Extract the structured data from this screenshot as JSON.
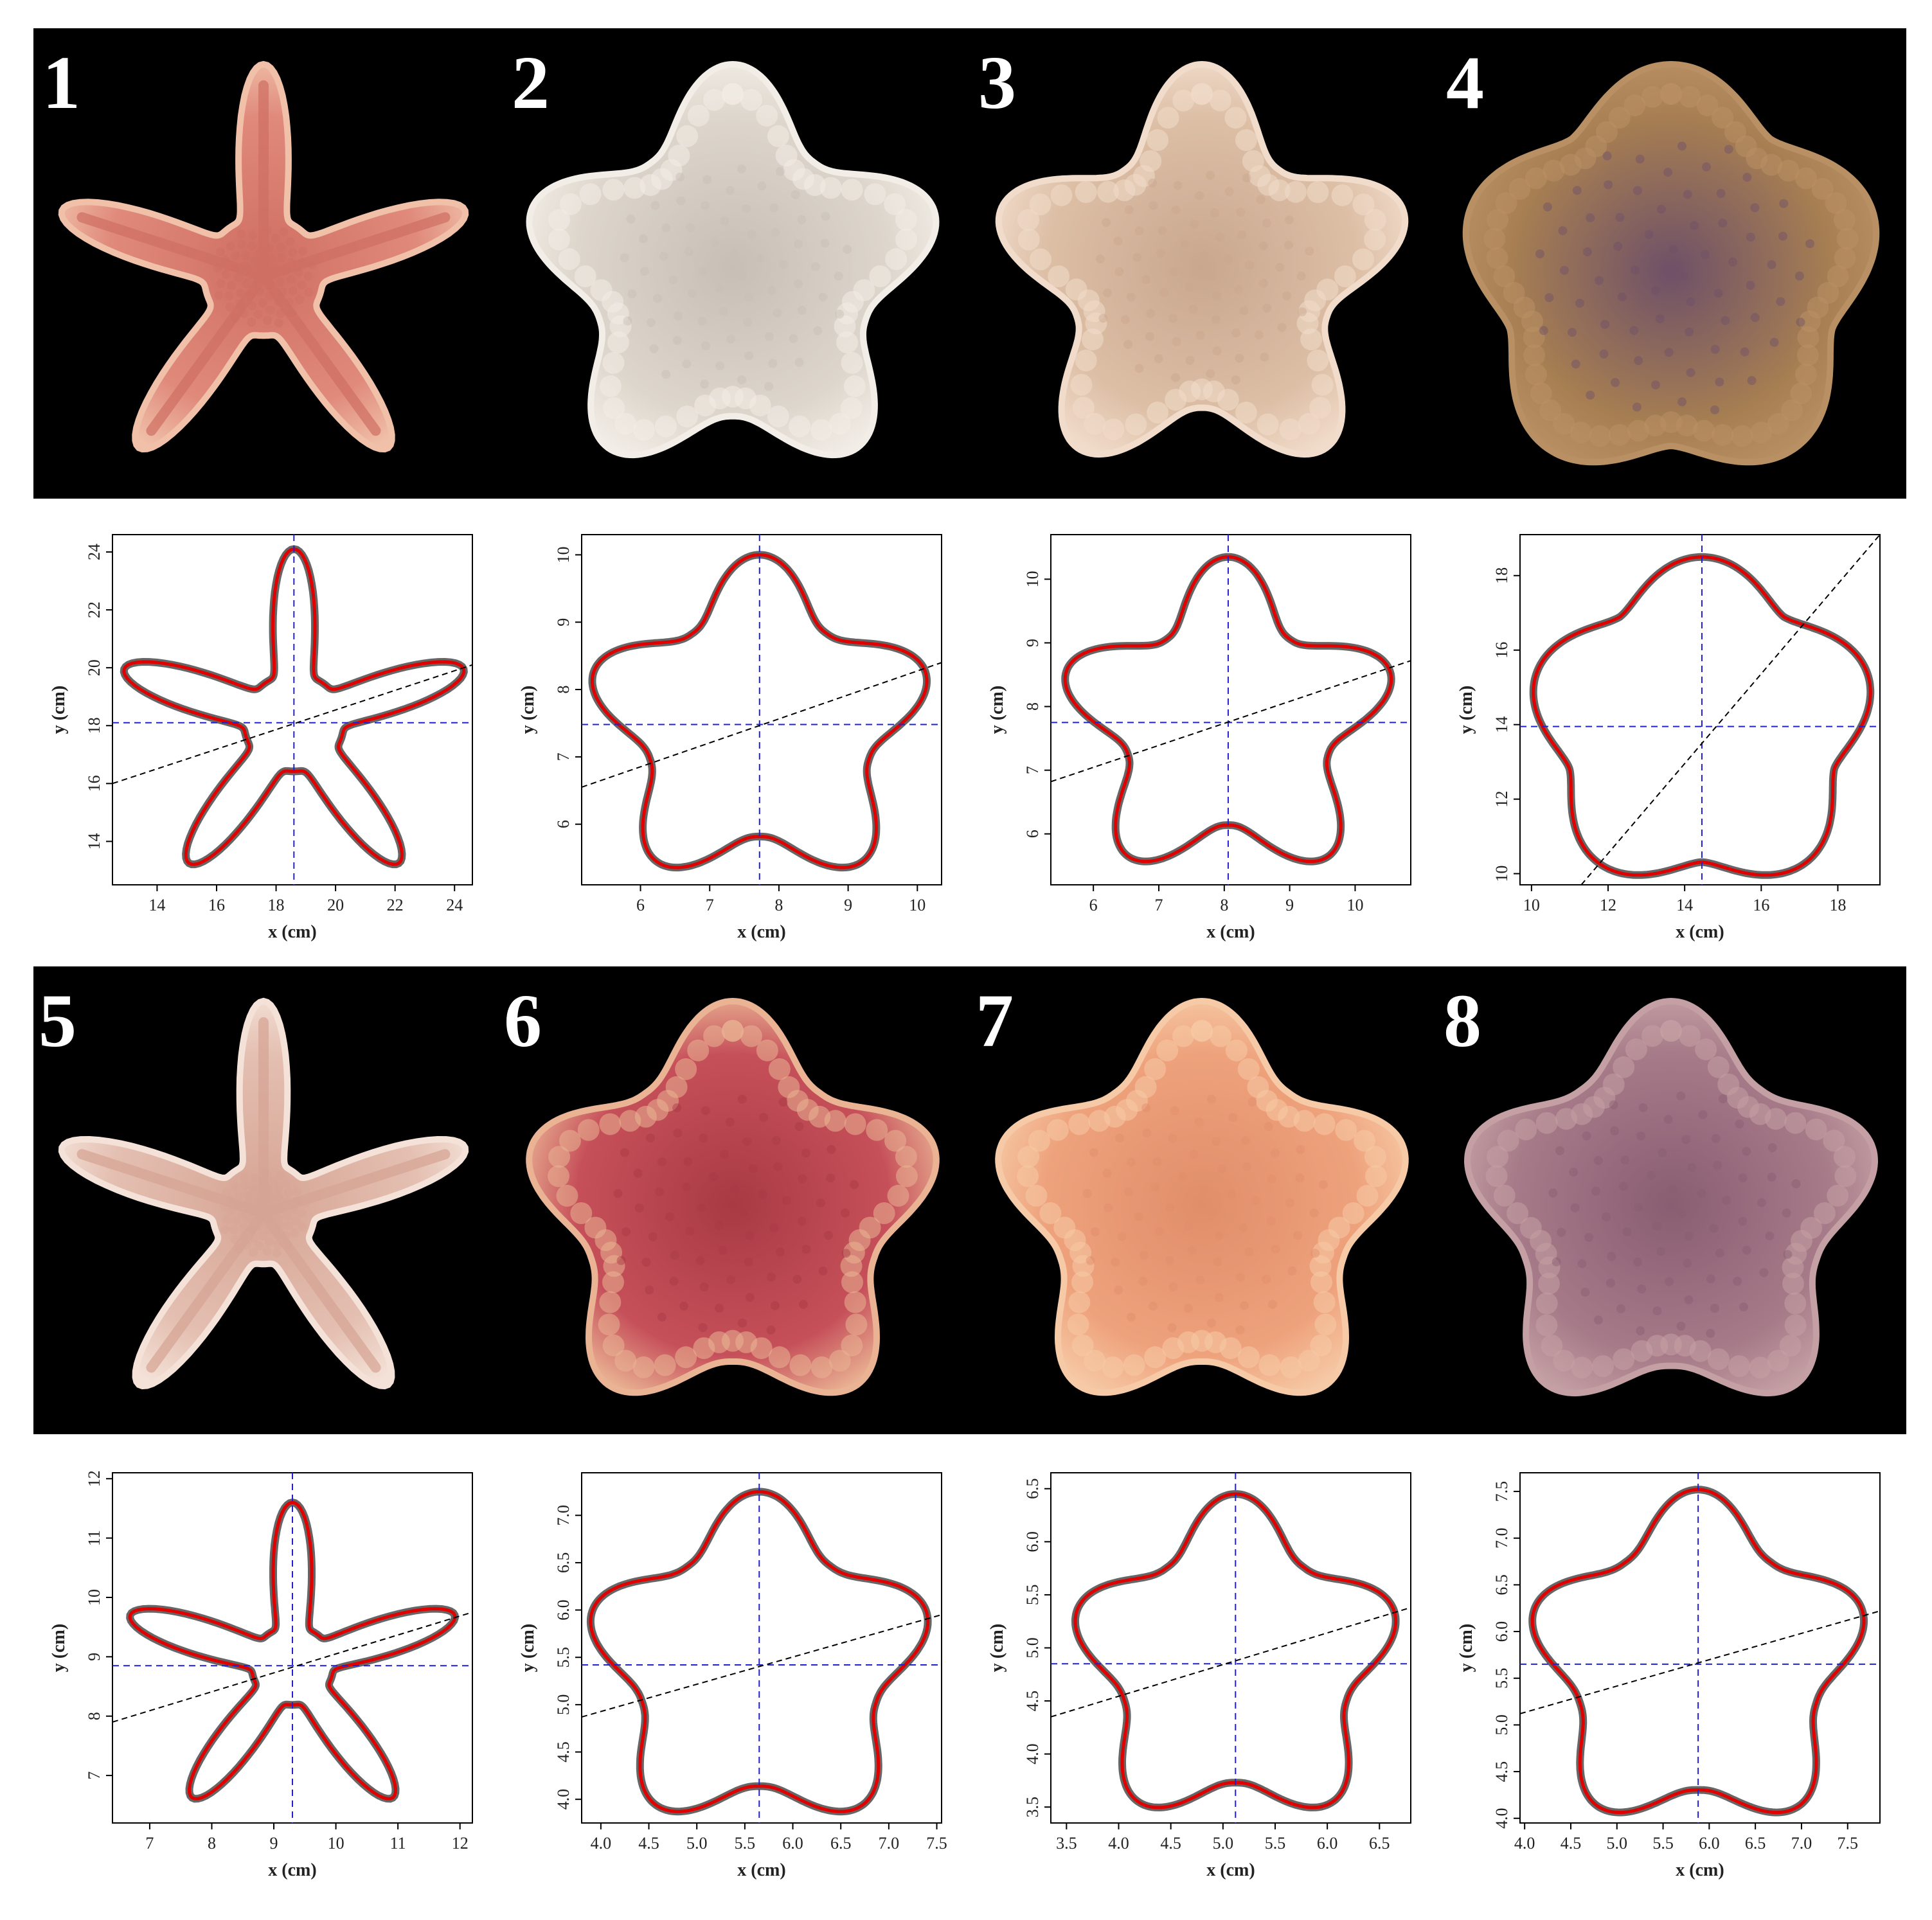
{
  "figure": {
    "panels": [
      {
        "label": "1",
        "species": "rayed",
        "arm_ratio": 0.28,
        "colors": {
          "body": "#e08a7c",
          "mid": "#cf6f63",
          "edge": "#f0c0a8"
        }
      },
      {
        "label": "2",
        "species": "cushion",
        "arm_ratio": 0.66,
        "colors": {
          "body": "#ddd6cc",
          "mid": "#c7bfb6",
          "edge": "#f2ede6"
        }
      },
      {
        "label": "3",
        "species": "cushion",
        "arm_ratio": 0.62,
        "colors": {
          "body": "#ddbfa6",
          "mid": "#c9a78f",
          "edge": "#f1dccb"
        }
      },
      {
        "label": "4",
        "species": "pentagon",
        "arm_ratio": 0.8,
        "colors": {
          "body": "#a67e52",
          "mid": "#6e5068",
          "edge": "#b99064"
        }
      },
      {
        "label": "5",
        "species": "rayed",
        "arm_ratio": 0.24,
        "colors": {
          "body": "#e4c0b2",
          "mid": "#d6a494",
          "edge": "#f4e2d8"
        }
      },
      {
        "label": "6",
        "species": "plated",
        "arm_ratio": 0.7,
        "colors": {
          "body": "#c6505a",
          "mid": "#a83a44",
          "edge": "#eab494"
        }
      },
      {
        "label": "7",
        "species": "plated",
        "arm_ratio": 0.7,
        "colors": {
          "body": "#eea27c",
          "mid": "#e08e6a",
          "edge": "#f6caa6"
        }
      },
      {
        "label": "8",
        "species": "plated",
        "arm_ratio": 0.72,
        "colors": {
          "body": "#a67a88",
          "mid": "#8a5e72",
          "edge": "#c4a0a4"
        }
      }
    ],
    "axis_label_x": "x (cm)",
    "axis_label_y": "y (cm)",
    "colors": {
      "fitted_outline": "#e00000",
      "observed_outline": "#666666",
      "centroid_lines": "#2020d0",
      "axis_line": "#000000"
    }
  },
  "chart_data": [
    {
      "type": "scatter",
      "panel": "1",
      "xlim": [
        12.5,
        24.6
      ],
      "ylim": [
        12.5,
        24.6
      ],
      "xticks": [
        "14",
        "16",
        "18",
        "20",
        "22",
        "24"
      ],
      "yticks": [
        "14",
        "16",
        "18",
        "20",
        "22",
        "24"
      ],
      "centroid": [
        18.6,
        18.1
      ],
      "arm_tip_top": [
        18.6,
        24.1
      ],
      "arm_ratio": 0.28,
      "dashed_line_points": [
        [
          12.5,
          16.0
        ],
        [
          24.6,
          20.1
        ]
      ],
      "grid": false
    },
    {
      "type": "scatter",
      "panel": "2",
      "xlim": [
        5.15,
        10.35
      ],
      "ylim": [
        5.1,
        10.3
      ],
      "xticks": [
        "6",
        "7",
        "8",
        "9",
        "10"
      ],
      "yticks": [
        "6",
        "7",
        "8",
        "9",
        "10"
      ],
      "centroid": [
        7.72,
        7.48
      ],
      "arm_tip_top": [
        7.72,
        10.0
      ],
      "arm_ratio": 0.66,
      "dashed_line_points": [
        [
          5.15,
          6.55
        ],
        [
          10.35,
          8.4
        ]
      ],
      "grid": false
    },
    {
      "type": "scatter",
      "panel": "3",
      "xlim": [
        5.35,
        10.85
      ],
      "ylim": [
        5.2,
        10.7
      ],
      "xticks": [
        "6",
        "7",
        "8",
        "9",
        "10"
      ],
      "yticks": [
        "6",
        "7",
        "8",
        "9",
        "10"
      ],
      "centroid": [
        8.06,
        7.75
      ],
      "arm_tip_top": [
        8.06,
        10.35
      ],
      "arm_ratio": 0.62,
      "dashed_line_points": [
        [
          5.35,
          6.82
        ],
        [
          10.85,
          8.72
        ]
      ],
      "grid": false
    },
    {
      "type": "scatter",
      "panel": "4",
      "xlim": [
        9.7,
        19.1
      ],
      "ylim": [
        9.7,
        19.1
      ],
      "xticks": [
        "10",
        "12",
        "14",
        "16",
        "18"
      ],
      "yticks": [
        "10",
        "12",
        "14",
        "16",
        "18"
      ],
      "centroid": [
        14.45,
        13.95
      ],
      "arm_tip_top": [
        14.45,
        18.5
      ],
      "arm_ratio": 0.8,
      "dashed_line_points": [
        [
          11.3,
          9.7
        ],
        [
          19.1,
          19.1
        ]
      ],
      "grid": false
    },
    {
      "type": "scatter",
      "panel": "5",
      "xlim": [
        6.4,
        12.2
      ],
      "ylim": [
        6.2,
        12.1
      ],
      "xticks": [
        "7",
        "8",
        "9",
        "10",
        "11",
        "12"
      ],
      "yticks": [
        "7",
        "8",
        "9",
        "10",
        "11",
        "12"
      ],
      "centroid": [
        9.3,
        8.85
      ],
      "arm_tip_top": [
        9.3,
        11.6
      ],
      "arm_ratio": 0.24,
      "dashed_line_points": [
        [
          6.4,
          7.9
        ],
        [
          12.2,
          9.75
        ]
      ],
      "grid": false
    },
    {
      "type": "scatter",
      "panel": "6",
      "xlim": [
        3.8,
        7.55
      ],
      "ylim": [
        3.75,
        7.45
      ],
      "xticks": [
        "4.0",
        "4.5",
        "5.0",
        "5.5",
        "6.0",
        "6.5",
        "7.0",
        "7.5"
      ],
      "yticks": [
        "4.0",
        "4.5",
        "5.0",
        "5.5",
        "6.0",
        "6.5",
        "7.0"
      ],
      "centroid": [
        5.65,
        5.42
      ],
      "arm_tip_top": [
        5.65,
        7.25
      ],
      "arm_ratio": 0.7,
      "dashed_line_points": [
        [
          3.8,
          4.87
        ],
        [
          7.55,
          5.95
        ]
      ],
      "grid": false
    },
    {
      "type": "scatter",
      "panel": "7",
      "xlim": [
        3.35,
        6.8
      ],
      "ylim": [
        3.35,
        6.65
      ],
      "xticks": [
        "3.5",
        "4.0",
        "4.5",
        "5.0",
        "5.5",
        "6.0",
        "6.5"
      ],
      "yticks": [
        "3.5",
        "4.0",
        "4.5",
        "5.0",
        "5.5",
        "6.0",
        "6.5"
      ],
      "centroid": [
        5.12,
        4.85
      ],
      "arm_tip_top": [
        5.12,
        6.45
      ],
      "arm_ratio": 0.7,
      "dashed_line_points": [
        [
          3.35,
          4.35
        ],
        [
          6.8,
          5.38
        ]
      ],
      "grid": false
    },
    {
      "type": "scatter",
      "panel": "8",
      "xlim": [
        3.95,
        7.85
      ],
      "ylim": [
        3.95,
        7.7
      ],
      "xticks": [
        "4.0",
        "4.5",
        "5.0",
        "5.5",
        "6.0",
        "6.5",
        "7.0",
        "7.5"
      ],
      "yticks": [
        "4.0",
        "4.5",
        "5.0",
        "5.5",
        "6.0",
        "6.5",
        "7.0",
        "7.5"
      ],
      "centroid": [
        5.88,
        5.65
      ],
      "arm_tip_top": [
        5.88,
        7.52
      ],
      "arm_ratio": 0.72,
      "dashed_line_points": [
        [
          3.95,
          5.12
        ],
        [
          7.85,
          6.22
        ]
      ],
      "grid": false
    }
  ]
}
